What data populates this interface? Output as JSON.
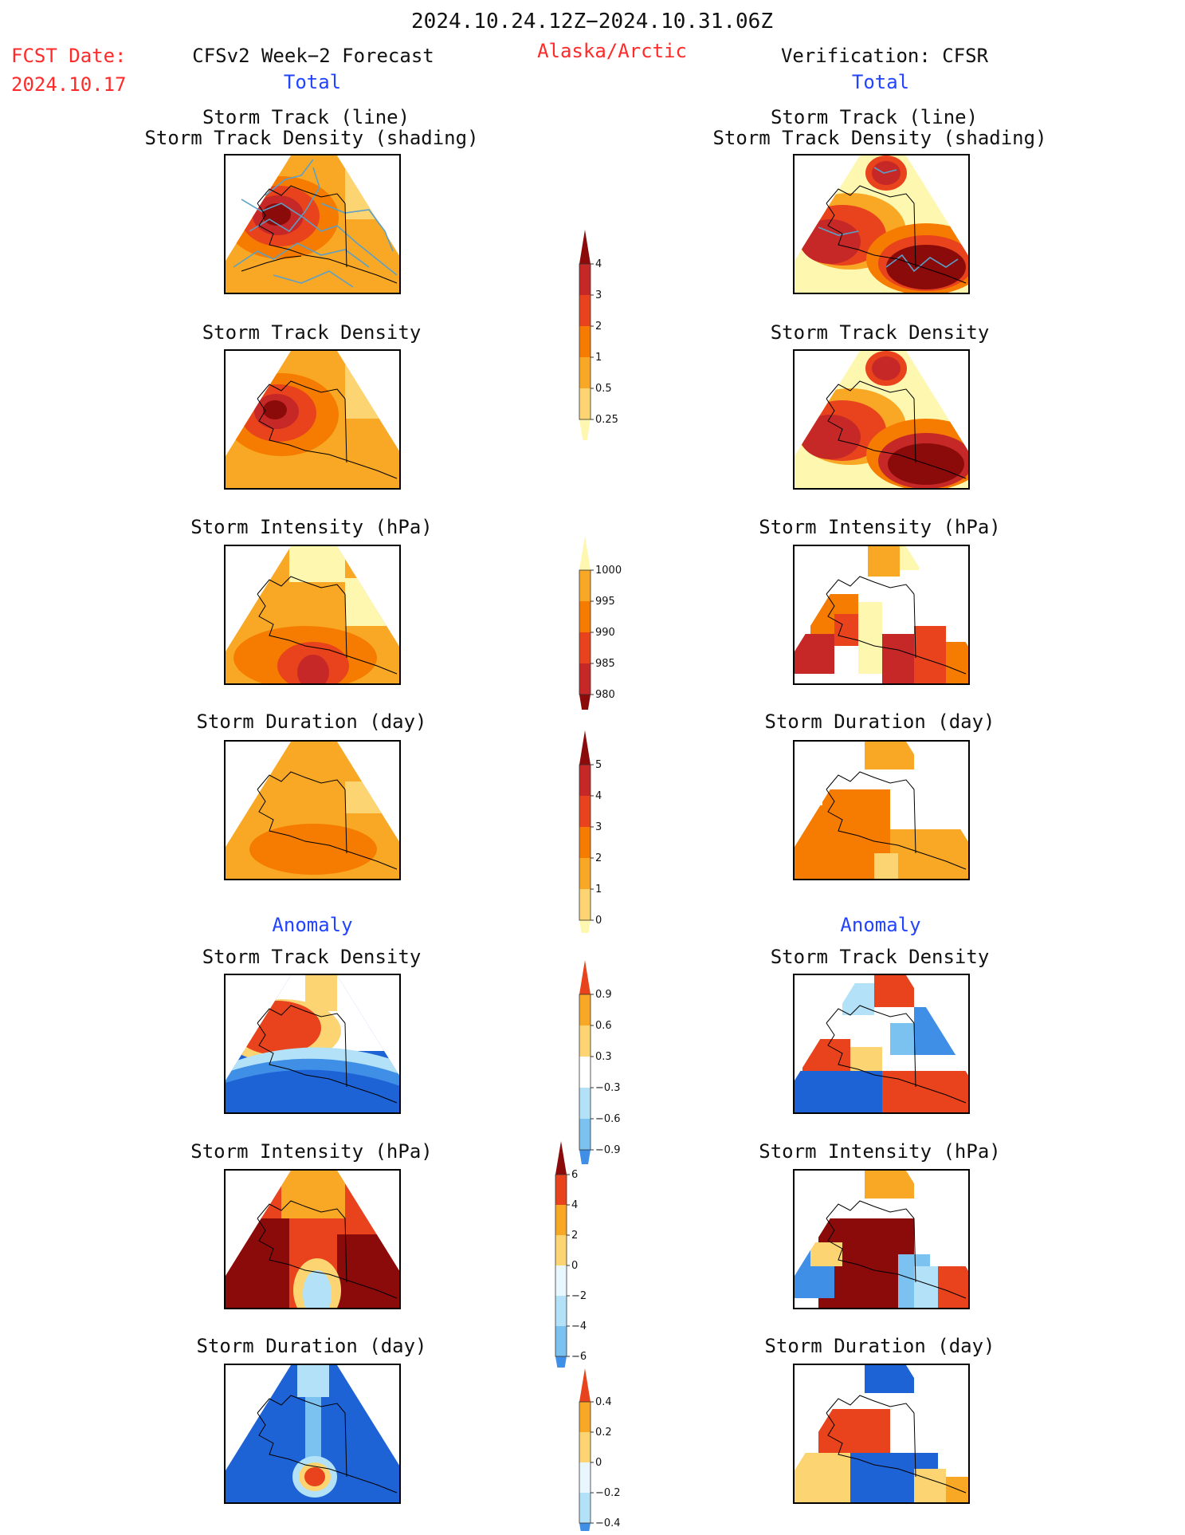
{
  "header": {
    "period": "2024.10.24.12Z−2024.10.31.06Z",
    "fcst_label": "FCST Date:",
    "fcst_date": "2024.10.17",
    "forecast_title": "CFSv2 Week−2 Forecast",
    "region": "Alaska/Arctic",
    "verification_title": "Verification: CFSR",
    "total_left": "Total",
    "total_right": "Total",
    "anomaly_left": "Anomaly",
    "anomaly_right": "Anomaly"
  },
  "panel_titles": {
    "l_track_1": "Storm Track (line)",
    "l_track_2": "Storm Track Density (shading)",
    "r_track_1": "Storm Track (line)",
    "r_track_2": "Storm Track Density (shading)",
    "l_density": "Storm Track Density",
    "r_density": "Storm Track Density",
    "l_intensity": "Storm Intensity (hPa)",
    "r_intensity": "Storm Intensity (hPa)",
    "l_duration": "Storm Duration (day)",
    "r_duration": "Storm Duration (day)",
    "l_anom_density": "Storm Track Density",
    "r_anom_density": "Storm Track Density",
    "l_anom_intensity": "Storm Intensity (hPa)",
    "r_anom_intensity": "Storm Intensity (hPa)",
    "l_anom_duration": "Storm Duration (day)",
    "r_anom_duration": "Storm Duration (day)"
  },
  "colors": {
    "warm": [
      "#fdf7b0",
      "#fcd472",
      "#f9a825",
      "#f57c00",
      "#e8431c",
      "#c62828",
      "#8b0a0a"
    ],
    "cool": [
      "#e8f6fd",
      "#b3e2f8",
      "#7cc2f0",
      "#3f8fe6",
      "#1e63d6"
    ],
    "track_line": "#5aa0c8"
  },
  "chart_data": [
    {
      "type": "heatmap",
      "name": "colorbar_density",
      "levels": [
        "0.25",
        "0.5",
        "1",
        "2",
        "3",
        "4"
      ],
      "colors": [
        "#fdf7b0",
        "#fcd472",
        "#f9a825",
        "#f57c00",
        "#e8431c",
        "#c62828",
        "#8b0a0a"
      ]
    },
    {
      "type": "heatmap",
      "name": "colorbar_intensity",
      "levels": [
        "1000",
        "995",
        "990",
        "985",
        "980"
      ],
      "colors": [
        "#fdf7b0",
        "#f9a825",
        "#f57c00",
        "#e8431c",
        "#c62828",
        "#8b0a0a"
      ]
    },
    {
      "type": "heatmap",
      "name": "colorbar_duration",
      "levels": [
        "0",
        "1",
        "2",
        "3",
        "4",
        "5"
      ],
      "colors": [
        "#fdf7b0",
        "#fcd472",
        "#f9a825",
        "#f57c00",
        "#e8431c",
        "#c62828",
        "#8b0a0a"
      ]
    },
    {
      "type": "heatmap",
      "name": "colorbar_anom_density",
      "levels": [
        "0.9",
        "0.6",
        "0.3",
        "−0.3",
        "−0.6",
        "−0.9"
      ],
      "colors": [
        "#e8431c",
        "#f9a825",
        "#fcd472",
        "#ffffff",
        "#b3e2f8",
        "#7cc2f0",
        "#3f8fe6"
      ]
    },
    {
      "type": "heatmap",
      "name": "colorbar_anom_intensity",
      "levels": [
        "6",
        "4",
        "2",
        "0",
        "−2",
        "−4",
        "−6"
      ],
      "colors": [
        "#8b0a0a",
        "#e8431c",
        "#f9a825",
        "#fcd472",
        "#e8f6fd",
        "#b3e2f8",
        "#7cc2f0",
        "#3f8fe6"
      ]
    },
    {
      "type": "heatmap",
      "name": "colorbar_anom_duration",
      "levels": [
        "0.4",
        "0.2",
        "0",
        "−0.2",
        "−0.4"
      ],
      "colors": [
        "#e8431c",
        "#f9a825",
        "#fcd472",
        "#e8f6fd",
        "#b3e2f8",
        "#3f8fe6"
      ]
    }
  ]
}
